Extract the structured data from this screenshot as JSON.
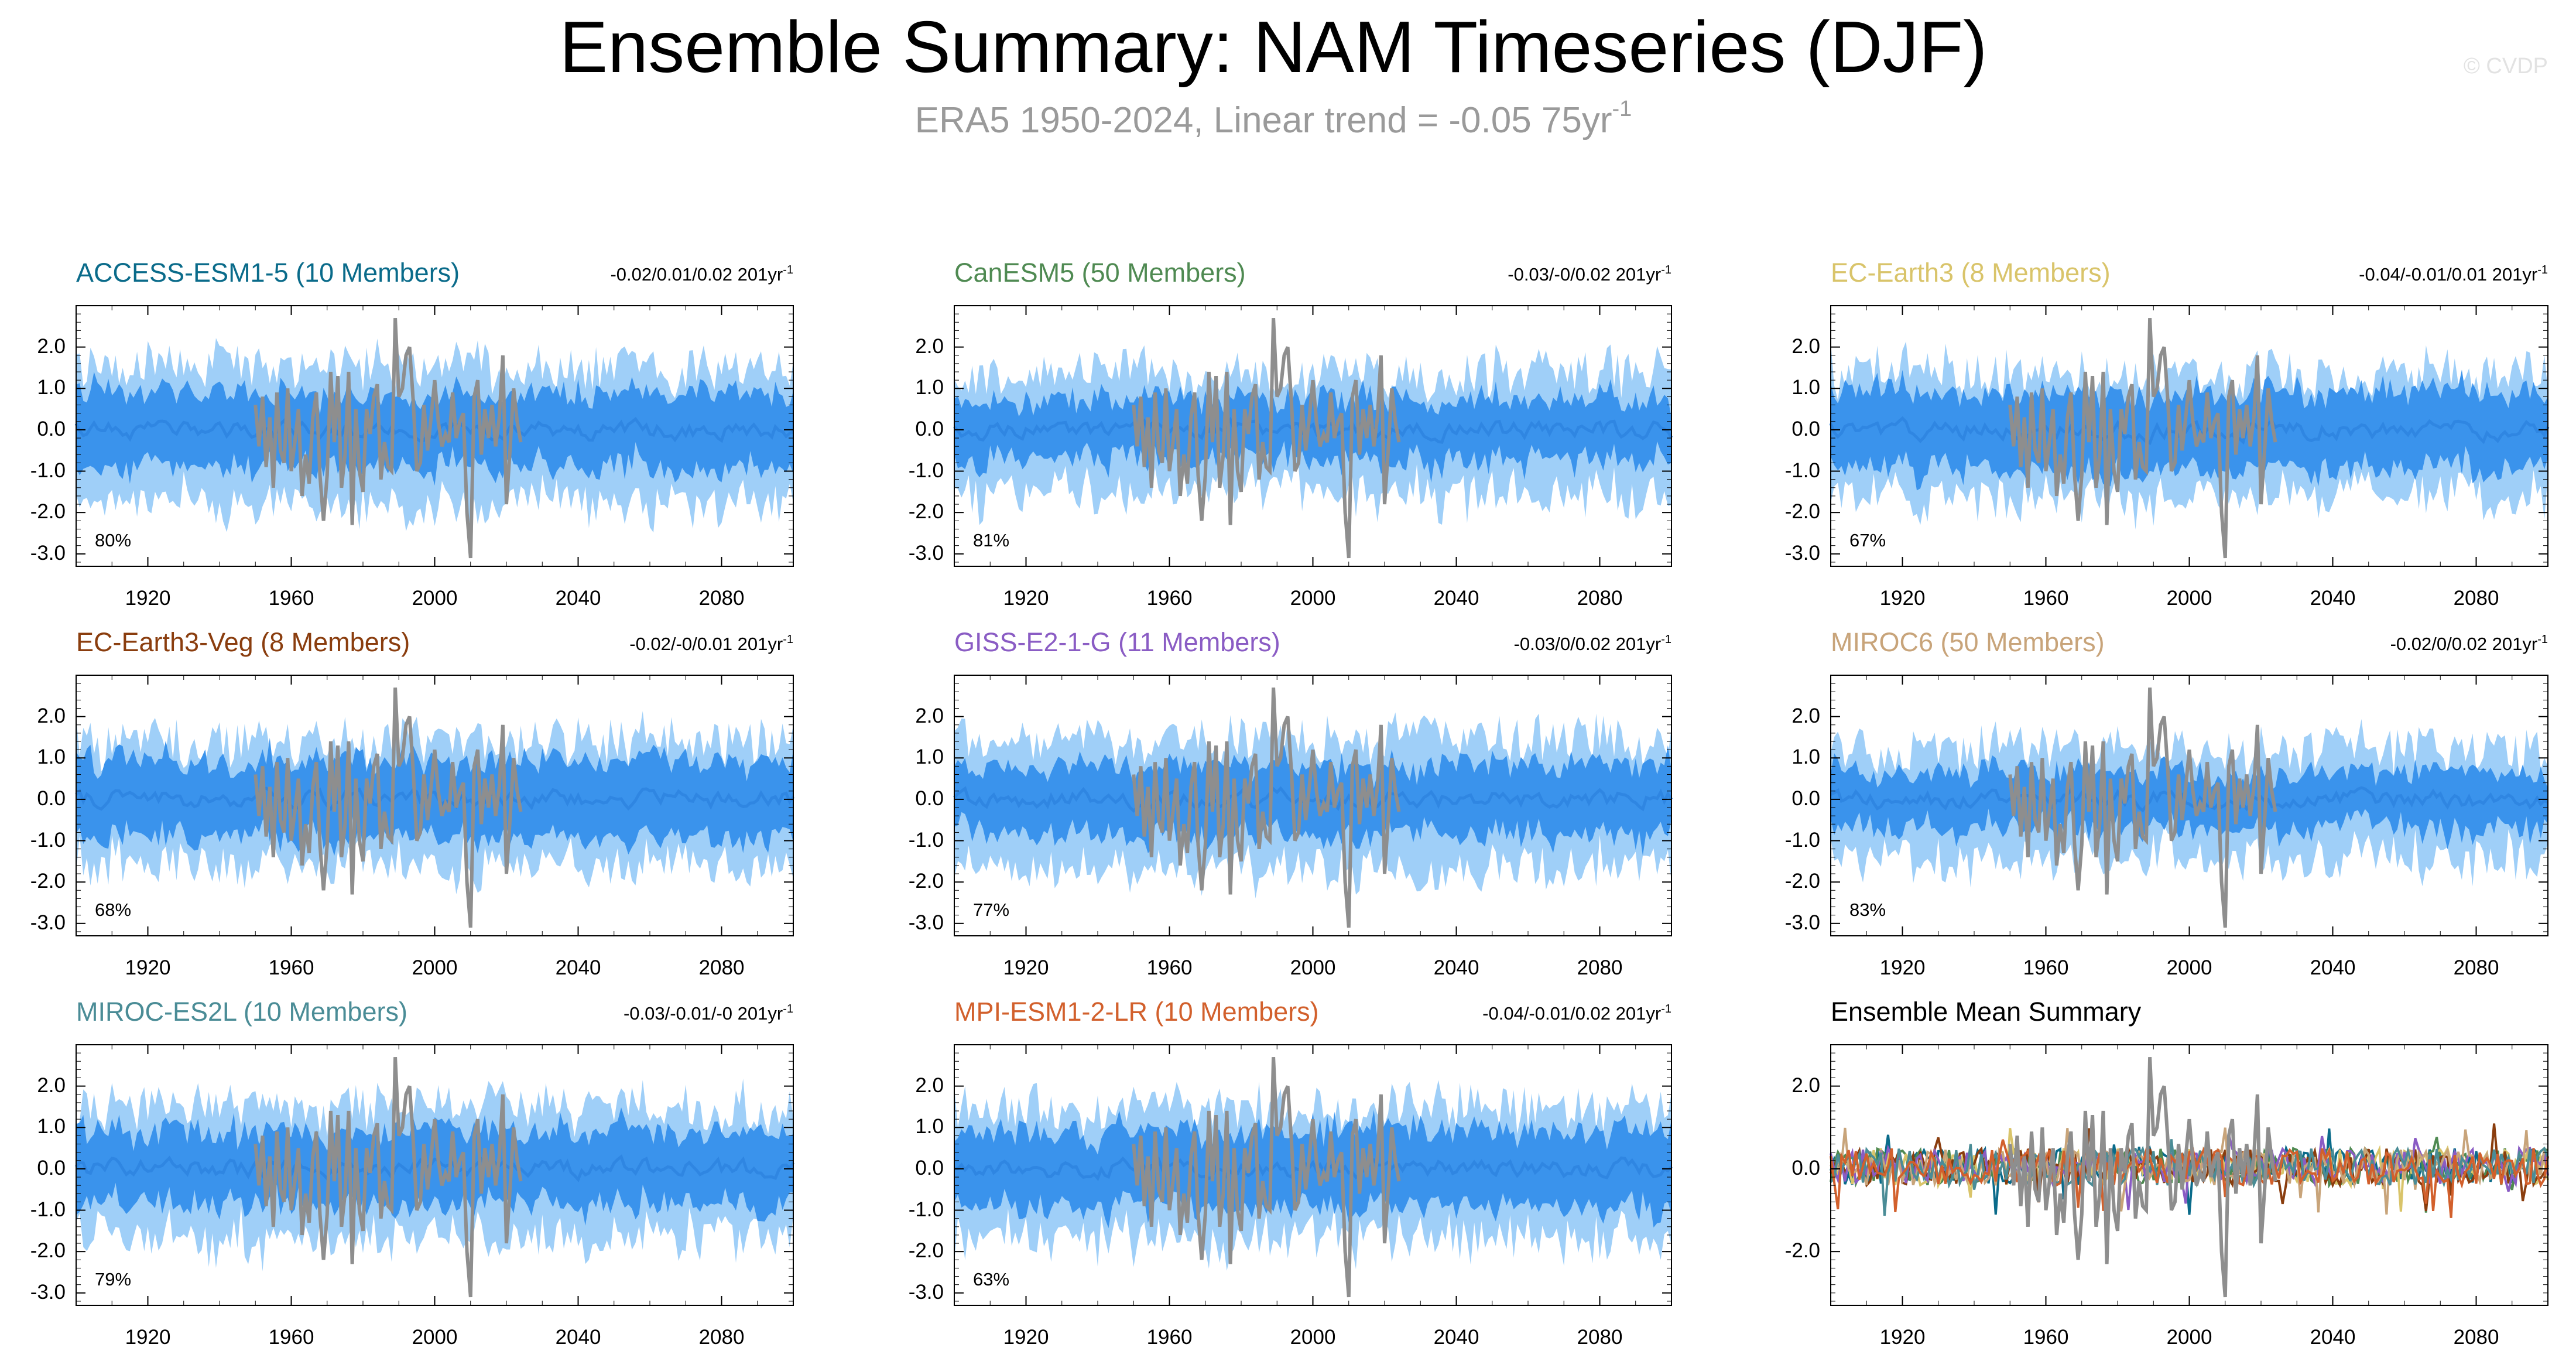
{
  "title": "Ensemble Summary: NAM Timeseries (DJF)",
  "subtitle": "ERA5 1950-2024, Linear trend = -0.05 75yr",
  "subtitle_sup": "-1",
  "watermark": "© CVDP",
  "colors": {
    "outer_band": "#9fcff8",
    "inner_band": "#3a93ec",
    "ens_mean": "#2f86e2",
    "obs": "#8e8e8e"
  },
  "chart_data": [
    {
      "type": "area",
      "name": "ACCESS-ESM1-5 (10 Members)",
      "color": "#0a6b8a",
      "trend_text": "-0.02/0.01/0.02 201yr",
      "trend_sup": "-1",
      "pct_label": "80%",
      "x_range": [
        1900,
        2100
      ],
      "ylim": [
        -3.3,
        3.0
      ],
      "yticks": [
        "2.0",
        "1.0",
        "0.0",
        "-1.0",
        "-2.0",
        "-3.0"
      ],
      "ytick_values": [
        2,
        1,
        0,
        -1,
        -2,
        -3
      ],
      "xticks": [
        "1920",
        "1960",
        "2000",
        "2040",
        "2080"
      ],
      "xtick_values": [
        1920,
        1960,
        2000,
        2040,
        2080
      ],
      "band_outer_halfwidth": 1.55,
      "band_inner_halfwidth": 0.75,
      "seed": 11
    },
    {
      "type": "area",
      "name": "CanESM5 (50 Members)",
      "color": "#4f8a52",
      "trend_text": "-0.03/-0/0.02 201yr",
      "trend_sup": "-1",
      "pct_label": "81%",
      "x_range": [
        1900,
        2100
      ],
      "ylim": [
        -3.3,
        3.0
      ],
      "yticks": [
        "2.0",
        "1.0",
        "0.0",
        "-1.0",
        "-2.0",
        "-3.0"
      ],
      "ytick_values": [
        2,
        1,
        0,
        -1,
        -2,
        -3
      ],
      "xticks": [
        "1920",
        "1960",
        "2000",
        "2040",
        "2080"
      ],
      "xtick_values": [
        1920,
        1960,
        2000,
        2040,
        2080
      ],
      "band_outer_halfwidth": 1.35,
      "band_inner_halfwidth": 0.6,
      "seed": 23
    },
    {
      "type": "area",
      "name": "EC-Earth3 (8 Members)",
      "color": "#d9c46a",
      "trend_text": "-0.04/-0.01/0.01 201yr",
      "trend_sup": "-1",
      "pct_label": "67%",
      "x_range": [
        1900,
        2100
      ],
      "ylim": [
        -3.3,
        3.0
      ],
      "yticks": [
        "2.0",
        "1.0",
        "0.0",
        "-1.0",
        "-2.0",
        "-3.0"
      ],
      "ytick_values": [
        2,
        1,
        0,
        -1,
        -2,
        -3
      ],
      "xticks": [
        "1920",
        "1960",
        "2000",
        "2040",
        "2080"
      ],
      "xtick_values": [
        1920,
        1960,
        2000,
        2040,
        2080
      ],
      "band_outer_halfwidth": 1.4,
      "band_inner_halfwidth": 0.8,
      "seed": 37
    },
    {
      "type": "area",
      "name": "EC-Earth3-Veg (8 Members)",
      "color": "#8a3d0e",
      "trend_text": "-0.02/-0/0.01 201yr",
      "trend_sup": "-1",
      "pct_label": "68%",
      "x_range": [
        1900,
        2100
      ],
      "ylim": [
        -3.3,
        3.0
      ],
      "yticks": [
        "2.0",
        "1.0",
        "0.0",
        "-1.0",
        "-2.0",
        "-3.0"
      ],
      "ytick_values": [
        2,
        1,
        0,
        -1,
        -2,
        -3
      ],
      "xticks": [
        "1920",
        "1960",
        "2000",
        "2040",
        "2080"
      ],
      "xtick_values": [
        1920,
        1960,
        2000,
        2040,
        2080
      ],
      "band_outer_halfwidth": 1.4,
      "band_inner_halfwidth": 0.8,
      "seed": 41
    },
    {
      "type": "area",
      "name": "GISS-E2-1-G (11 Members)",
      "color": "#8a5cc4",
      "trend_text": "-0.03/0/0.02 201yr",
      "trend_sup": "-1",
      "pct_label": "77%",
      "x_range": [
        1900,
        2100
      ],
      "ylim": [
        -3.3,
        3.0
      ],
      "yticks": [
        "2.0",
        "1.0",
        "0.0",
        "-1.0",
        "-2.0",
        "-3.0"
      ],
      "ytick_values": [
        2,
        1,
        0,
        -1,
        -2,
        -3
      ],
      "xticks": [
        "1920",
        "1960",
        "2000",
        "2040",
        "2080"
      ],
      "xtick_values": [
        1920,
        1960,
        2000,
        2040,
        2080
      ],
      "band_outer_halfwidth": 1.45,
      "band_inner_halfwidth": 0.7,
      "seed": 53
    },
    {
      "type": "area",
      "name": "MIROC6 (50 Members)",
      "color": "#c8a47a",
      "trend_text": "-0.02/0/0.02 201yr",
      "trend_sup": "-1",
      "pct_label": "83%",
      "x_range": [
        1900,
        2100
      ],
      "ylim": [
        -3.3,
        3.0
      ],
      "yticks": [
        "2.0",
        "1.0",
        "0.0",
        "-1.0",
        "-2.0",
        "-3.0"
      ],
      "ytick_values": [
        2,
        1,
        0,
        -1,
        -2,
        -3
      ],
      "xticks": [
        "1920",
        "1960",
        "2000",
        "2040",
        "2080"
      ],
      "xtick_values": [
        1920,
        1960,
        2000,
        2040,
        2080
      ],
      "band_outer_halfwidth": 1.2,
      "band_inner_halfwidth": 0.55,
      "seed": 67
    },
    {
      "type": "area",
      "name": "MIROC-ES2L (10 Members)",
      "color": "#4a8c96",
      "trend_text": "-0.03/-0.01/-0 201yr",
      "trend_sup": "-1",
      "pct_label": "79%",
      "x_range": [
        1900,
        2100
      ],
      "ylim": [
        -3.3,
        3.0
      ],
      "yticks": [
        "2.0",
        "1.0",
        "0.0",
        "-1.0",
        "-2.0",
        "-3.0"
      ],
      "ytick_values": [
        2,
        1,
        0,
        -1,
        -2,
        -3
      ],
      "xticks": [
        "1920",
        "1960",
        "2000",
        "2040",
        "2080"
      ],
      "xtick_values": [
        1920,
        1960,
        2000,
        2040,
        2080
      ],
      "band_outer_halfwidth": 1.45,
      "band_inner_halfwidth": 0.75,
      "seed": 79
    },
    {
      "type": "area",
      "name": "MPI-ESM1-2-LR (10 Members)",
      "color": "#d2602c",
      "trend_text": "-0.04/-0.01/0.02 201yr",
      "trend_sup": "-1",
      "pct_label": "63%",
      "x_range": [
        1900,
        2100
      ],
      "ylim": [
        -3.3,
        3.0
      ],
      "yticks": [
        "2.0",
        "1.0",
        "0.0",
        "-1.0",
        "-2.0",
        "-3.0"
      ],
      "ytick_values": [
        2,
        1,
        0,
        -1,
        -2,
        -3
      ],
      "xticks": [
        "1920",
        "1960",
        "2000",
        "2040",
        "2080"
      ],
      "xtick_values": [
        1920,
        1960,
        2000,
        2040,
        2080
      ],
      "band_outer_halfwidth": 1.5,
      "band_inner_halfwidth": 0.8,
      "seed": 83
    },
    {
      "type": "line",
      "name": "Ensemble Mean Summary",
      "color": "#000000",
      "x_range": [
        1900,
        2100
      ],
      "ylim": [
        -3.3,
        3.0
      ],
      "yticks": [
        "2.0",
        "0.0",
        "-2.0"
      ],
      "ytick_values": [
        2,
        0,
        -2
      ],
      "xticks": [
        "1920",
        "1960",
        "2000",
        "2040",
        "2080"
      ],
      "xtick_values": [
        1920,
        1960,
        2000,
        2040,
        2080
      ],
      "series_colors": [
        "#0a6b8a",
        "#4f8a52",
        "#d9c46a",
        "#8a3d0e",
        "#8a5cc4",
        "#c8a47a",
        "#4a8c96",
        "#d2602c"
      ]
    }
  ],
  "observations": {
    "name": "ERA5",
    "years": [
      1950,
      2024
    ],
    "values": [
      0.6,
      -0.4,
      0.8,
      -0.9,
      0.3,
      -1.4,
      0.9,
      -0.5,
      -0.8,
      1.0,
      -1.0,
      -0.3,
      0.5,
      -1.6,
      -0.6,
      -1.3,
      0.3,
      0.9,
      -1.1,
      -2.2,
      -1.1,
      1.4,
      -0.3,
      1.3,
      -1.4,
      -0.6,
      1.4,
      -2.3,
      0.5,
      -1.0,
      -1.5,
      0.5,
      -0.1,
      0.8,
      1.1,
      -1.2,
      -0.3,
      -0.9,
      -1.0,
      2.7,
      0.8,
      1.0,
      1.8,
      2.0,
      0.7,
      -1.0,
      -0.8,
      0.6,
      -0.5,
      0.3,
      1.2,
      0.2,
      -0.4,
      -0.1,
      -0.3,
      0.9,
      -0.2,
      0.2,
      0.4,
      -2.0,
      -3.1,
      0.8,
      1.2,
      -0.6,
      0.5,
      -0.2,
      0.6,
      -0.4,
      0.3,
      1.8,
      -1.8,
      -0.5,
      1.0,
      0.2,
      -0.3
    ]
  }
}
